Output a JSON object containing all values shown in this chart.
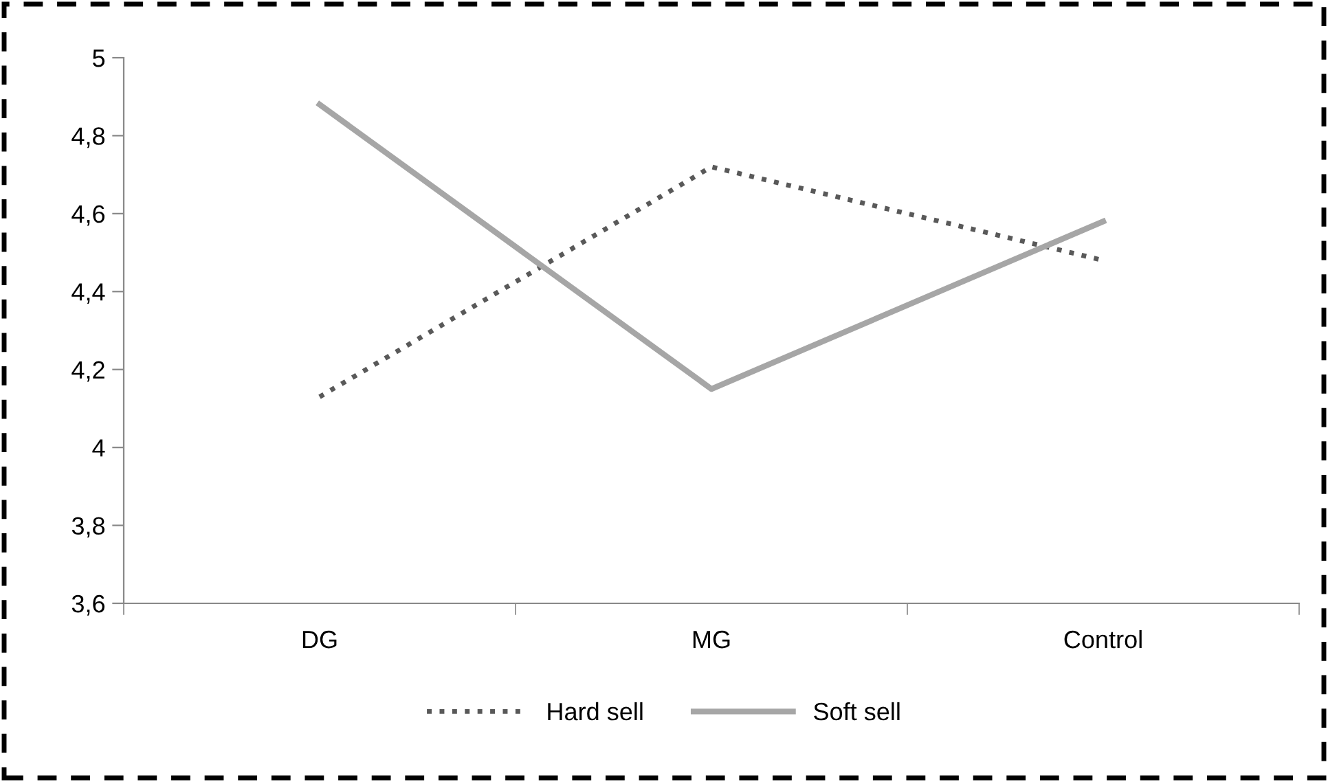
{
  "chart_data": {
    "type": "line",
    "categories": [
      "DG",
      "MG",
      "Control"
    ],
    "series": [
      {
        "name": "Hard sell",
        "color": "#595959",
        "values": [
          4.13,
          4.72,
          4.48
        ],
        "line_style": "dotted"
      },
      {
        "name": "Soft sell",
        "color": "#a6a6a6",
        "values": [
          4.88,
          4.15,
          4.58
        ],
        "line_style": "solid"
      }
    ],
    "ylim": [
      3.6,
      5
    ],
    "yticks": [
      {
        "value": 3.6,
        "label": "3,6"
      },
      {
        "value": 3.8,
        "label": "3,8"
      },
      {
        "value": 4,
        "label": "4"
      },
      {
        "value": 4.2,
        "label": "4,2"
      },
      {
        "value": 4.4,
        "label": "4,4"
      },
      {
        "value": 4.6,
        "label": "4,6"
      },
      {
        "value": 4.8,
        "label": "4,8"
      },
      {
        "value": 5,
        "label": "5"
      }
    ],
    "grid": false,
    "legend": "bottom",
    "marker": "none"
  }
}
